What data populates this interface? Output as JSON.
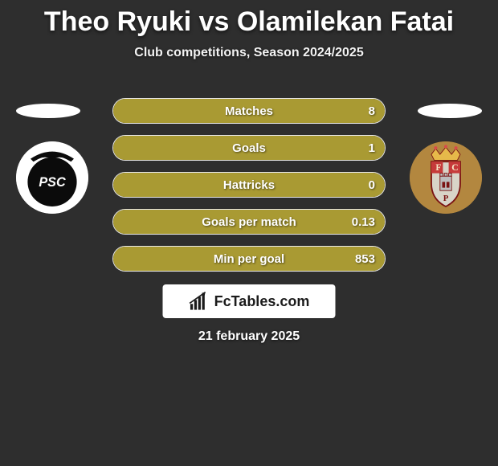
{
  "title": "Theo Ryuki vs Olamilekan Fatai",
  "subtitle": "Club competitions, Season 2024/2025",
  "date": "21 february 2025",
  "logo_text": "FcTables.com",
  "colors": {
    "background": "#2e2e2e",
    "pill_left_fill": "#a99a33",
    "pill_border": "#e8e8e8",
    "badge_left_bg": "#ffffff",
    "badge_right_bg": "#b3873f",
    "text": "#ffffff"
  },
  "badge_left": {
    "name": "portimonense",
    "inner": "PSC"
  },
  "badge_right": {
    "name": "penafiel",
    "inner": "FCP"
  },
  "chart": {
    "type": "bar",
    "pill_height": 32,
    "pill_gap": 14,
    "pill_radius": 16,
    "label_fontsize": 15,
    "rows": [
      {
        "label": "Matches",
        "left": "",
        "right": "8",
        "fill_pct": 100
      },
      {
        "label": "Goals",
        "left": "",
        "right": "1",
        "fill_pct": 100
      },
      {
        "label": "Hattricks",
        "left": "",
        "right": "0",
        "fill_pct": 100
      },
      {
        "label": "Goals per match",
        "left": "",
        "right": "0.13",
        "fill_pct": 100
      },
      {
        "label": "Min per goal",
        "left": "",
        "right": "853",
        "fill_pct": 100
      }
    ]
  }
}
